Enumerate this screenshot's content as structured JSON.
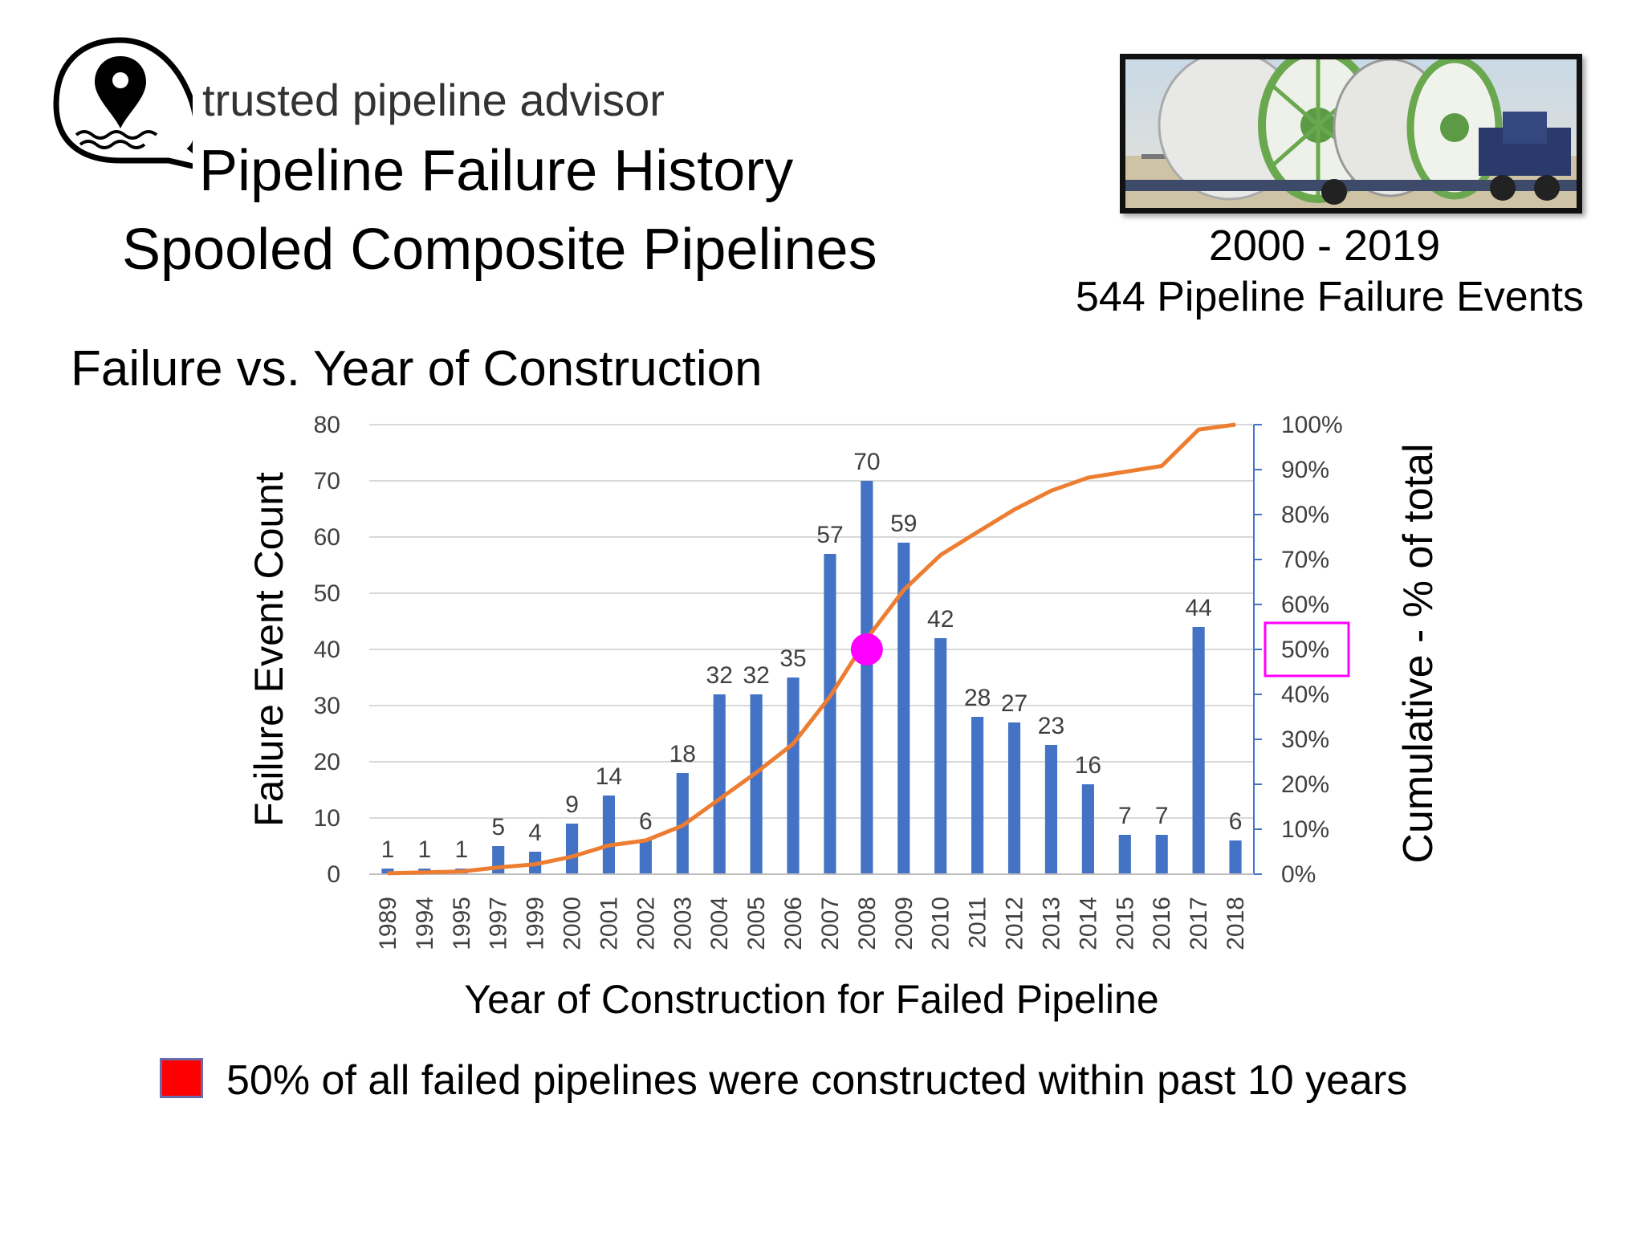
{
  "brand": {
    "name": "trusted pipeline advisor",
    "logo_icon": "location-pin-speech-bubble-icon"
  },
  "header": {
    "title_line1": "Pipeline Failure History",
    "title_line2": "Spooled Composite Pipelines",
    "date_range": "2000 - 2019",
    "event_summary": "544 Pipeline Failure Events",
    "photo": "spooled-pipe-reels-on-truck-trailer"
  },
  "section_title": "Failure vs. Year of Construction",
  "chart_data": {
    "type": "bar",
    "categories": [
      "1989",
      "1994",
      "1995",
      "1997",
      "1999",
      "2000",
      "2001",
      "2002",
      "2003",
      "2004",
      "2005",
      "2006",
      "2007",
      "2008",
      "2009",
      "2010",
      "2011",
      "2012",
      "2013",
      "2014",
      "2015",
      "2016",
      "2017",
      "2018"
    ],
    "series": [
      {
        "values": [
          1,
          1,
          1,
          5,
          4,
          9,
          14,
          6,
          18,
          32,
          32,
          35,
          57,
          70,
          59,
          42,
          28,
          27,
          23,
          16,
          7,
          7,
          44,
          6
        ],
        "color": "#4472c4"
      },
      {
        "type": "line",
        "axis": "right",
        "values": [
          0.2,
          0.4,
          0.6,
          1.5,
          2.2,
          3.9,
          6.4,
          7.5,
          10.8,
          16.7,
          22.6,
          29.0,
          39.5,
          52.4,
          63.2,
          71.0,
          76.1,
          81.1,
          85.3,
          88.2,
          89.5,
          90.8,
          98.9,
          100
        ],
        "color": "#ed7d31"
      }
    ],
    "xlabel": "Year of Construction for Failed Pipeline",
    "ylabel": "Failure Event Count",
    "y2label": "Cumulative - % of total",
    "ylim": [
      0,
      80
    ],
    "yticks": [
      0,
      10,
      20,
      30,
      40,
      50,
      60,
      70,
      80
    ],
    "y2lim": [
      0,
      100
    ],
    "y2ticks": [
      "0%",
      "10%",
      "20%",
      "30%",
      "40%",
      "50%",
      "60%",
      "70%",
      "80%",
      "90%",
      "100%"
    ],
    "highlight": {
      "category": "2008",
      "cumulative_percent": 50,
      "marker_color": "#ff00ff",
      "boxed_tick": "50%"
    },
    "grid": true
  },
  "legend": {
    "color": "#ff0000",
    "text": "50% of all failed pipelines were constructed within past 10 years"
  }
}
